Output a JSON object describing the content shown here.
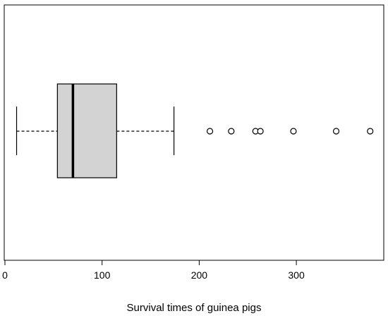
{
  "chart_data": {
    "type": "boxplot",
    "orientation": "horizontal",
    "xlabel": "Survival times of guinea pigs",
    "xlim": [
      0,
      390
    ],
    "xticks": [
      0,
      100,
      200,
      300
    ],
    "xtick_labels": [
      "0",
      "100",
      "200",
      "300"
    ],
    "box": {
      "whisker_low": 12,
      "q1": 54,
      "median": 70,
      "q3": 115,
      "whisker_high": 174,
      "fill": "#d3d3d3",
      "outliers": [
        211,
        233,
        258,
        263,
        297,
        341,
        376
      ]
    },
    "grid": false,
    "legend": "none"
  }
}
